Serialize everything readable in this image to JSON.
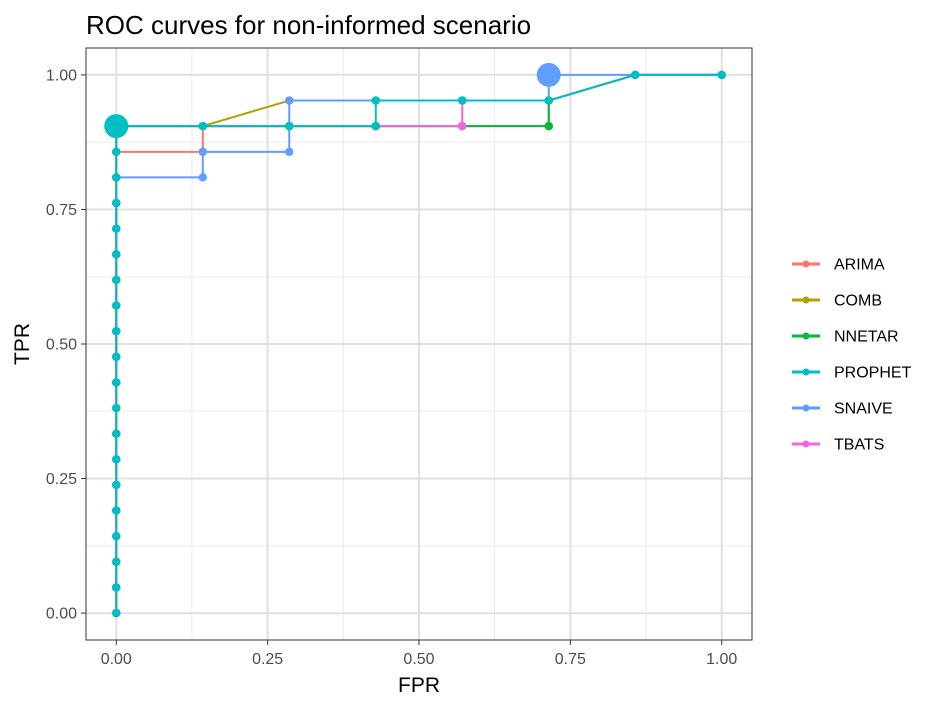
{
  "chart_data": {
    "type": "line",
    "title": "ROC curves for non-informed scenario",
    "xlabel": "FPR",
    "ylabel": "TPR",
    "xlim": [
      -0.05,
      1.05
    ],
    "ylim": [
      -0.05,
      1.05
    ],
    "xticks": [
      0.0,
      0.25,
      0.5,
      0.75,
      1.0
    ],
    "xtick_labels": [
      "0.00",
      "0.25",
      "0.50",
      "0.75",
      "1.00"
    ],
    "yticks": [
      0.0,
      0.25,
      0.5,
      0.75,
      1.0
    ],
    "ytick_labels": [
      "0.00",
      "0.25",
      "0.50",
      "0.75",
      "1.00"
    ],
    "grid": true,
    "legend_position": "right",
    "series": [
      {
        "name": "ARIMA",
        "color": "#F8766D",
        "x": [
          0,
          0,
          0,
          0,
          0,
          0,
          0,
          0,
          0,
          0,
          0,
          0,
          0,
          0,
          0,
          0,
          0,
          0,
          0,
          0.1429,
          0.1429,
          0.2857,
          0.4286,
          0.5714,
          0.7143,
          0.7143,
          0.8571,
          1.0
        ],
        "y": [
          0,
          0.0476,
          0.0952,
          0.1429,
          0.1905,
          0.2381,
          0.2857,
          0.3333,
          0.381,
          0.4286,
          0.4762,
          0.5238,
          0.5714,
          0.619,
          0.6667,
          0.7143,
          0.7619,
          0.8095,
          0.8571,
          0.8571,
          0.9048,
          0.9048,
          0.9048,
          0.9048,
          0.9048,
          0.9524,
          1.0,
          1.0
        ]
      },
      {
        "name": "COMB",
        "color": "#B79F00",
        "x": [
          0,
          0,
          0,
          0,
          0,
          0,
          0,
          0,
          0,
          0,
          0,
          0,
          0,
          0,
          0,
          0,
          0,
          0,
          0,
          0,
          0.1429,
          0.2857,
          0.4286,
          0.5714,
          0.7143,
          0.8571,
          1.0
        ],
        "y": [
          0,
          0.0476,
          0.0952,
          0.1429,
          0.1905,
          0.2381,
          0.2857,
          0.3333,
          0.381,
          0.4286,
          0.4762,
          0.5238,
          0.5714,
          0.619,
          0.6667,
          0.7143,
          0.7619,
          0.8095,
          0.8571,
          0.9048,
          0.9048,
          0.9524,
          0.9524,
          0.9524,
          0.9524,
          1.0,
          1.0
        ]
      },
      {
        "name": "NNETAR",
        "color": "#00BA38",
        "x": [
          0,
          0,
          0,
          0,
          0,
          0,
          0,
          0,
          0,
          0,
          0,
          0,
          0,
          0,
          0,
          0,
          0,
          0,
          0,
          0,
          0.1429,
          0.2857,
          0.4286,
          0.5714,
          0.7143,
          0.7143,
          0.8571,
          1.0
        ],
        "y": [
          0,
          0.0476,
          0.0952,
          0.1429,
          0.1905,
          0.2381,
          0.2857,
          0.3333,
          0.381,
          0.4286,
          0.4762,
          0.5238,
          0.5714,
          0.619,
          0.6667,
          0.7143,
          0.7619,
          0.8095,
          0.8571,
          0.9048,
          0.9048,
          0.9048,
          0.9048,
          0.9048,
          0.9048,
          0.9524,
          1.0,
          1.0
        ]
      },
      {
        "name": "SNAIVE",
        "color": "#619CFF",
        "x": [
          0,
          0,
          0,
          0,
          0,
          0,
          0,
          0,
          0,
          0,
          0,
          0,
          0,
          0,
          0,
          0,
          0,
          0,
          0.1429,
          0.1429,
          0.2857,
          0.2857,
          0.4286,
          0.5714,
          0.7143,
          0.7143,
          0.8571,
          1.0
        ],
        "y": [
          0,
          0.0476,
          0.0952,
          0.1429,
          0.1905,
          0.2381,
          0.2857,
          0.3333,
          0.381,
          0.4286,
          0.4762,
          0.5238,
          0.5714,
          0.619,
          0.6667,
          0.7143,
          0.7619,
          0.8095,
          0.8095,
          0.8571,
          0.8571,
          0.9524,
          0.9524,
          0.9524,
          0.9524,
          1.0,
          1.0,
          1.0
        ]
      },
      {
        "name": "TBATS",
        "color": "#F564E3",
        "x": [
          0,
          0,
          0,
          0,
          0,
          0,
          0,
          0,
          0,
          0,
          0,
          0,
          0,
          0,
          0,
          0,
          0,
          0,
          0,
          0,
          0.1429,
          0.2857,
          0.4286,
          0.5714,
          0.5714,
          0.7143,
          0.8571,
          1.0
        ],
        "y": [
          0,
          0.0476,
          0.0952,
          0.1429,
          0.1905,
          0.2381,
          0.2857,
          0.3333,
          0.381,
          0.4286,
          0.4762,
          0.5238,
          0.5714,
          0.619,
          0.6667,
          0.7143,
          0.7619,
          0.8095,
          0.8571,
          0.9048,
          0.9048,
          0.9048,
          0.9048,
          0.9048,
          0.9524,
          0.9524,
          1.0,
          1.0
        ]
      },
      {
        "name": "PROPHET",
        "color": "#00BFC4",
        "x": [
          0,
          0,
          0,
          0,
          0,
          0,
          0,
          0,
          0,
          0,
          0,
          0,
          0,
          0,
          0,
          0,
          0,
          0,
          0,
          0,
          0.1429,
          0.2857,
          0.4286,
          0.4286,
          0.5714,
          0.7143,
          0.8571,
          1.0
        ],
        "y": [
          0,
          0.0476,
          0.0952,
          0.1429,
          0.1905,
          0.2381,
          0.2857,
          0.3333,
          0.381,
          0.4286,
          0.4762,
          0.5238,
          0.5714,
          0.619,
          0.6667,
          0.7143,
          0.7619,
          0.8095,
          0.8571,
          0.9048,
          0.9048,
          0.9048,
          0.9048,
          0.9524,
          0.9524,
          0.9524,
          1.0,
          1.0
        ]
      }
    ],
    "highlight_points": [
      {
        "series": "PROPHET",
        "x": 0,
        "y": 0.9048,
        "color": "#00BFC4"
      },
      {
        "series": "SNAIVE",
        "x": 0.7143,
        "y": 1.0,
        "color": "#619CFF"
      }
    ],
    "legend_order": [
      "ARIMA",
      "COMB",
      "NNETAR",
      "PROPHET",
      "SNAIVE",
      "TBATS"
    ]
  }
}
